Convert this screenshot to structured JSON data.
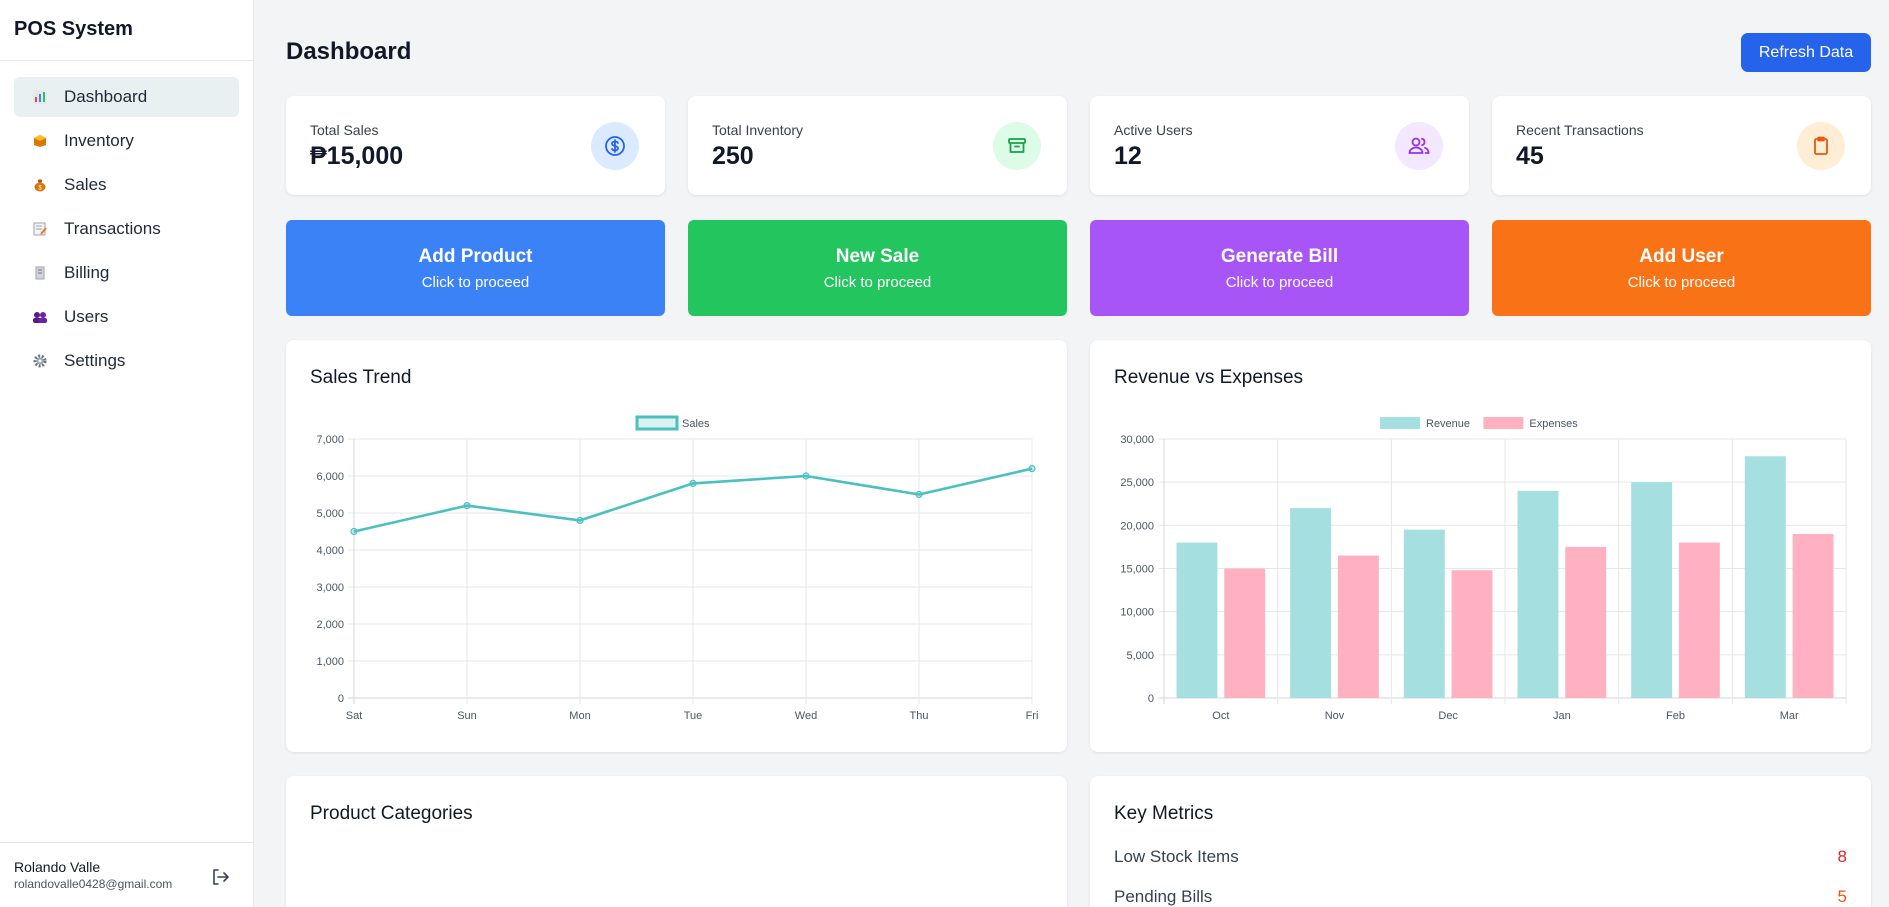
{
  "sidebar": {
    "brand": "POS System",
    "items": [
      {
        "label": "Dashboard",
        "icon": "chart-icon",
        "active": true
      },
      {
        "label": "Inventory",
        "icon": "box-icon"
      },
      {
        "label": "Sales",
        "icon": "money-bag-icon"
      },
      {
        "label": "Transactions",
        "icon": "memo-icon"
      },
      {
        "label": "Billing",
        "icon": "receipt-icon"
      },
      {
        "label": "Users",
        "icon": "users-icon"
      },
      {
        "label": "Settings",
        "icon": "gear-icon"
      }
    ],
    "user": {
      "name": "Rolando Valle",
      "email": "rolandovalle0428@gmail.com"
    }
  },
  "header": {
    "title": "Dashboard",
    "refresh_label": "Refresh Data"
  },
  "stats": [
    {
      "label": "Total Sales",
      "value": "₱15,000",
      "icon": "dollar-icon",
      "bg": "#dbeafe",
      "color": "#2563eb"
    },
    {
      "label": "Total Inventory",
      "value": "250",
      "icon": "archive-icon",
      "bg": "#dcfce7",
      "color": "#16a34a"
    },
    {
      "label": "Active Users",
      "value": "12",
      "icon": "users-icon",
      "bg": "#f3e8ff",
      "color": "#9333ea"
    },
    {
      "label": "Recent Transactions",
      "value": "45",
      "icon": "clipboard-icon",
      "bg": "#ffedd5",
      "color": "#ea580c"
    }
  ],
  "actions": [
    {
      "title": "Add Product",
      "sub": "Click to proceed",
      "color": "#3b82f6"
    },
    {
      "title": "New Sale",
      "sub": "Click to proceed",
      "color": "#22c55e"
    },
    {
      "title": "Generate Bill",
      "sub": "Click to proceed",
      "color": "#a855f7"
    },
    {
      "title": "Add User",
      "sub": "Click to proceed",
      "color": "#f97316"
    }
  ],
  "panels": {
    "sales_trend": "Sales Trend",
    "revenue_expenses": "Revenue vs Expenses",
    "product_categories": "Product Categories",
    "key_metrics": "Key Metrics"
  },
  "key_metrics": [
    {
      "label": "Low Stock Items",
      "value": "8",
      "color": "#dc2626"
    },
    {
      "label": "Pending Bills",
      "value": "5",
      "color": "#ea580c"
    }
  ],
  "chart_data": [
    {
      "type": "line",
      "title": "Sales Trend",
      "categories": [
        "Sat",
        "Sun",
        "Mon",
        "Tue",
        "Wed",
        "Thu",
        "Fri"
      ],
      "series": [
        {
          "name": "Sales",
          "values": [
            4500,
            5200,
            4800,
            5800,
            6000,
            5500,
            6200
          ],
          "color": "#4bc0c0"
        }
      ],
      "ylim": [
        0,
        7000
      ],
      "yticks": [
        "0",
        "1,000",
        "2,000",
        "3,000",
        "4,000",
        "5,000",
        "6,000",
        "7,000"
      ],
      "legend": "top"
    },
    {
      "type": "bar",
      "title": "Revenue vs Expenses",
      "categories": [
        "Oct",
        "Nov",
        "Dec",
        "Jan",
        "Feb",
        "Mar"
      ],
      "series": [
        {
          "name": "Revenue",
          "values": [
            18000,
            22000,
            19500,
            24000,
            25000,
            28000
          ],
          "color": "#a5dfdf"
        },
        {
          "name": "Expenses",
          "values": [
            15000,
            16500,
            14800,
            17500,
            18000,
            19000
          ],
          "color": "#ffb1c1"
        }
      ],
      "ylim": [
        0,
        30000
      ],
      "yticks": [
        "0",
        "5,000",
        "10,000",
        "15,000",
        "20,000",
        "25,000",
        "30,000"
      ],
      "legend": "top"
    }
  ]
}
